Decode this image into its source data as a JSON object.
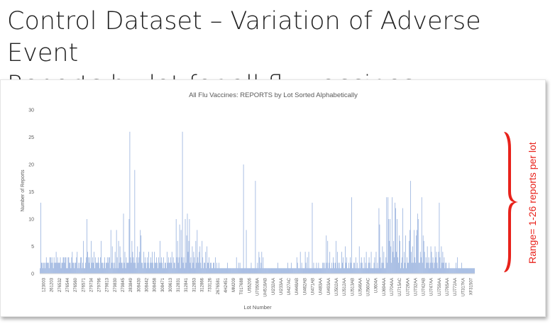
{
  "slide": {
    "title_line1": "Control Dataset – Variation of Adverse Event",
    "title_line2": "Reports by lot for all flu vaccines"
  },
  "annotation": {
    "text": "Range= 1-26 reports per lot",
    "color": "#e8221b"
  },
  "chart_data": {
    "type": "bar",
    "title": "All Flu Vaccines: REPORTS by Lot Sorted Alphabetically",
    "xlabel": "Lot Number",
    "ylabel": "Number of Reports",
    "ylim": [
      0,
      30
    ],
    "yticks": [
      0,
      5,
      10,
      15,
      20,
      25,
      30
    ],
    "grid": false,
    "bar_color": "#8eaadb",
    "tick_labels": [
      "123003",
      "261203",
      "276532",
      "276544",
      "276560",
      "276571",
      "279734",
      "279796",
      "279813",
      "279830",
      "279845",
      "283849",
      "308430",
      "308442",
      "308458",
      "308471",
      "309613",
      "312831",
      "312841",
      "312853",
      "312866",
      "733126",
      "2676581",
      "4H2451",
      "MM209",
      "T017688",
      "U5520б",
      "U70508A",
      "UH518AB",
      "UI232AA",
      "UI233AA",
      "UI427AC",
      "UI448AB",
      "UI462AB",
      "UI471AB",
      "UI483AA",
      "UI493AA",
      "UJ502AA",
      "UJ512AA",
      "UJ513AB",
      "UJ546AA",
      "UJ560AC",
      "UJ604A",
      "UJ694AA",
      "UJ704AA",
      "UJ715AC",
      "UJ726AA",
      "UJ732AA",
      "UJ742AB",
      "UJ747AA",
      "UJ759AA",
      "UJ765AA",
      "UJ772AA",
      "UT317KA",
      "XF31507"
    ],
    "values": [
      1,
      13,
      2,
      2,
      1,
      2,
      2,
      1,
      2,
      3,
      2,
      2,
      2,
      1,
      3,
      3,
      2,
      3,
      2,
      1,
      3,
      2,
      2,
      4,
      2,
      3,
      2,
      2,
      2,
      3,
      1,
      2,
      2,
      3,
      3,
      2,
      3,
      3,
      1,
      1,
      3,
      3,
      2,
      2,
      1,
      3,
      4,
      2,
      2,
      1,
      2,
      2,
      3,
      4,
      1,
      2,
      1,
      2,
      3,
      3,
      1,
      2,
      6,
      1,
      1,
      2,
      3,
      10,
      4,
      3,
      2,
      3,
      1,
      6,
      2,
      3,
      2,
      4,
      1,
      3,
      2,
      2,
      2,
      3,
      2,
      1,
      3,
      6,
      2,
      2,
      1,
      2,
      3,
      1,
      2,
      2,
      3,
      2,
      3,
      3,
      1,
      8,
      2,
      5,
      2,
      1,
      2,
      4,
      1,
      8,
      3,
      1,
      6,
      2,
      5,
      3,
      2,
      2,
      1,
      11,
      2,
      4,
      1,
      3,
      2,
      2,
      2,
      10,
      26,
      3,
      2,
      6,
      4,
      3,
      2,
      19,
      2,
      1,
      3,
      5,
      2,
      3,
      4,
      8,
      7,
      2,
      2,
      1,
      4,
      2,
      3,
      2,
      1,
      3,
      2,
      4,
      1,
      2,
      3,
      2,
      4,
      2,
      1,
      4,
      2,
      2,
      3,
      2,
      1,
      3,
      2,
      6,
      2,
      3,
      2,
      1,
      3,
      1,
      2,
      2,
      1,
      4,
      2,
      3,
      2,
      2,
      3,
      2,
      4,
      1,
      3,
      2,
      2,
      1,
      10,
      3,
      6,
      2,
      3,
      9,
      1,
      8,
      3,
      26,
      2,
      3,
      1,
      10,
      2,
      7,
      11,
      4,
      6,
      10,
      2,
      3,
      1,
      5,
      2,
      4,
      3,
      1,
      6,
      2,
      8,
      3,
      2,
      4,
      5,
      2,
      1,
      6,
      3,
      1,
      2,
      2,
      4,
      1,
      5,
      2,
      2,
      3,
      1,
      2,
      2,
      1,
      1,
      2,
      2,
      1,
      3,
      1,
      2,
      1,
      1,
      2,
      1,
      1,
      1,
      1,
      1,
      1,
      1,
      1,
      1,
      1,
      1,
      2,
      1,
      1,
      1,
      1,
      1,
      1,
      1,
      1,
      1,
      1,
      1,
      1,
      3,
      1,
      1,
      2,
      1,
      2,
      1,
      1,
      1,
      1,
      20,
      1,
      1,
      1,
      8,
      1,
      1,
      1,
      1,
      1,
      1,
      2,
      1,
      1,
      1,
      1,
      1,
      17,
      1,
      1,
      2,
      1,
      4,
      3,
      1,
      2,
      4,
      1,
      3,
      1,
      1,
      1,
      1,
      1,
      1,
      1,
      1,
      1,
      1,
      1,
      1,
      1,
      1,
      1,
      1,
      1,
      1,
      1,
      1,
      2,
      1,
      1,
      1,
      1,
      1,
      1,
      1,
      1,
      1,
      1,
      1,
      1,
      1,
      2,
      1,
      1,
      1,
      1,
      2,
      1,
      1,
      1,
      1,
      1,
      1,
      1,
      3,
      2,
      1,
      1,
      1,
      4,
      1,
      2,
      1,
      1,
      1,
      1,
      4,
      2,
      1,
      3,
      1,
      4,
      1,
      1,
      1,
      1,
      13,
      1,
      2,
      1,
      1,
      1,
      2,
      1,
      1,
      2,
      1,
      1,
      1,
      1,
      1,
      2,
      2,
      1,
      2,
      1,
      7,
      2,
      6,
      1,
      2,
      4,
      1,
      1,
      2,
      1,
      3,
      2,
      1,
      2,
      6,
      1,
      4,
      2,
      1,
      2,
      1,
      1,
      4,
      2,
      3,
      1,
      1,
      5,
      2,
      3,
      1,
      1,
      2,
      1,
      3,
      2,
      14,
      1,
      1,
      2,
      2,
      1,
      3,
      1,
      2,
      1,
      1,
      5,
      1,
      2,
      3,
      2,
      1,
      1,
      3,
      1,
      2,
      4,
      1,
      1,
      2,
      3,
      2,
      1,
      4,
      1,
      1,
      1,
      2,
      3,
      1,
      4,
      1,
      2,
      1,
      12,
      9,
      3,
      1,
      2,
      5,
      2,
      4,
      1,
      1,
      3,
      14,
      2,
      14,
      10,
      6,
      10,
      5,
      2,
      14,
      4,
      6,
      3,
      13,
      12,
      4,
      10,
      3,
      2,
      7,
      6,
      1,
      2,
      3,
      12,
      1,
      4,
      2,
      7,
      1,
      3,
      2,
      2,
      6,
      8,
      17,
      4,
      2,
      5,
      2,
      8,
      3,
      2,
      7,
      8,
      11,
      10,
      2,
      2,
      4,
      3,
      14,
      2,
      7,
      6,
      4,
      1,
      3,
      2,
      5,
      2,
      3,
      1,
      2,
      5,
      4,
      2,
      3,
      1,
      2,
      5,
      3,
      4,
      2,
      1,
      4,
      13,
      3,
      1,
      5,
      2,
      4,
      2,
      3,
      1,
      2,
      2,
      1,
      1,
      1,
      2,
      1,
      1,
      1,
      1,
      1,
      1,
      1,
      1,
      1,
      2,
      1,
      3,
      1,
      1,
      1,
      1,
      1,
      2,
      1,
      1,
      1,
      1,
      1,
      1,
      1,
      1,
      1,
      1,
      1,
      1,
      1,
      1,
      1,
      1,
      1,
      1
    ]
  }
}
